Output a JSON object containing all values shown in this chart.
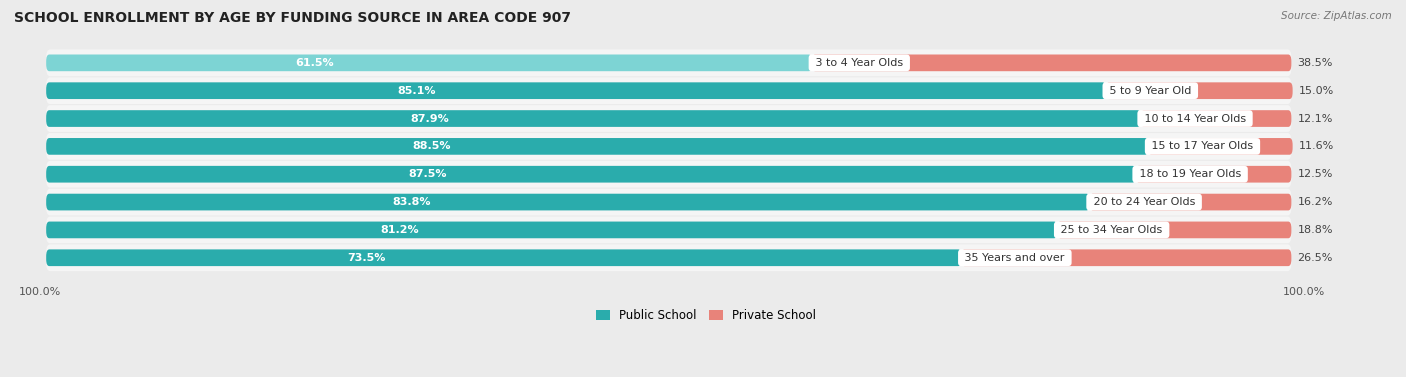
{
  "title": "SCHOOL ENROLLMENT BY AGE BY FUNDING SOURCE IN AREA CODE 907",
  "source": "Source: ZipAtlas.com",
  "categories": [
    "3 to 4 Year Olds",
    "5 to 9 Year Old",
    "10 to 14 Year Olds",
    "15 to 17 Year Olds",
    "18 to 19 Year Olds",
    "20 to 24 Year Olds",
    "25 to 34 Year Olds",
    "35 Years and over"
  ],
  "public_values": [
    61.5,
    85.1,
    87.9,
    88.5,
    87.5,
    83.8,
    81.2,
    73.5
  ],
  "private_values": [
    38.5,
    15.0,
    12.1,
    11.6,
    12.5,
    16.2,
    18.8,
    26.5
  ],
  "public_color_light": "#7dd4d4",
  "public_color_dark": "#2aacac",
  "private_color": "#e8837a",
  "public_label": "Public School",
  "private_label": "Private School",
  "background_color": "#ebebeb",
  "row_bg_color": "#f5f5f5",
  "title_fontsize": 10,
  "bar_label_fontsize": 8,
  "category_fontsize": 8,
  "legend_fontsize": 8.5,
  "axis_label_fontsize": 8
}
